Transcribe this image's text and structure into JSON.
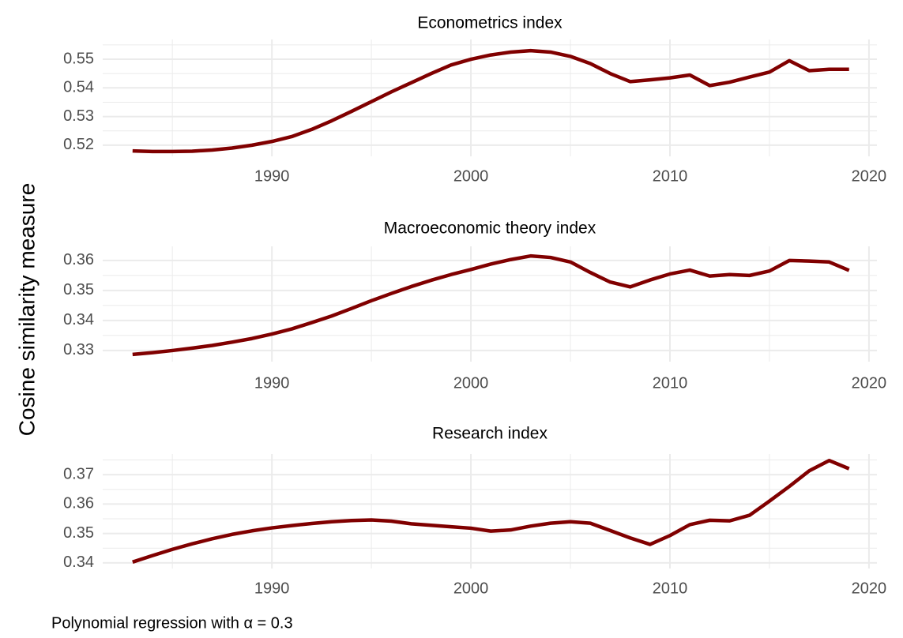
{
  "chart_data": [
    {
      "type": "line",
      "title": "Econometrics index",
      "x": [
        1983,
        1984,
        1985,
        1986,
        1987,
        1988,
        1989,
        1990,
        1991,
        1992,
        1993,
        1994,
        1995,
        1996,
        1997,
        1998,
        1999,
        2000,
        2001,
        2002,
        2003,
        2004,
        2005,
        2006,
        2007,
        2008,
        2009,
        2010,
        2011,
        2012,
        2013,
        2014,
        2015,
        2016,
        2017,
        2018,
        2019
      ],
      "series": [
        {
          "color": "#800000",
          "values": [
            0.518,
            0.5178,
            0.5178,
            0.5179,
            0.5183,
            0.519,
            0.52,
            0.5213,
            0.523,
            0.5255,
            0.5285,
            0.5318,
            0.5352,
            0.5386,
            0.5418,
            0.545,
            0.548,
            0.55,
            0.5515,
            0.5525,
            0.553,
            0.5525,
            0.551,
            0.5485,
            0.545,
            0.5422,
            0.5428,
            0.5435,
            0.5445,
            0.5408,
            0.542,
            0.5438,
            0.5455,
            0.5495,
            0.546,
            0.5465,
            0.5465
          ]
        }
      ],
      "xlim": [
        1981.5,
        2020.4
      ],
      "ylim": [
        0.5161,
        0.5569
      ],
      "xticks": [
        1990,
        2000,
        2010,
        2020
      ],
      "yticks": [
        0.52,
        0.53,
        0.54,
        0.55
      ],
      "grid": true
    },
    {
      "type": "line",
      "title": "Macroeconomic theory index",
      "x": [
        1983,
        1984,
        1985,
        1986,
        1987,
        1988,
        1989,
        1990,
        1991,
        1992,
        1993,
        1994,
        1995,
        1996,
        1997,
        1998,
        1999,
        2000,
        2001,
        2002,
        2003,
        2004,
        2005,
        2006,
        2007,
        2008,
        2009,
        2010,
        2011,
        2012,
        2013,
        2014,
        2015,
        2016,
        2017,
        2018,
        2019
      ],
      "series": [
        {
          "color": "#800000",
          "values": [
            0.3287,
            0.3293,
            0.33,
            0.3308,
            0.3317,
            0.3328,
            0.334,
            0.3355,
            0.3372,
            0.3393,
            0.3415,
            0.344,
            0.3466,
            0.349,
            0.3513,
            0.3534,
            0.3553,
            0.357,
            0.3588,
            0.3603,
            0.3615,
            0.361,
            0.3595,
            0.356,
            0.3528,
            0.3512,
            0.3535,
            0.3555,
            0.3568,
            0.3548,
            0.3553,
            0.355,
            0.3565,
            0.36,
            0.3598,
            0.3595,
            0.3567
          ]
        }
      ],
      "xlim": [
        1981.5,
        2020.4
      ],
      "ylim": [
        0.3263,
        0.3647
      ],
      "xticks": [
        1990,
        2000,
        2010,
        2020
      ],
      "yticks": [
        0.33,
        0.34,
        0.35,
        0.36
      ],
      "grid": true
    },
    {
      "type": "line",
      "title": "Research index",
      "x": [
        1983,
        1984,
        1985,
        1986,
        1987,
        1988,
        1989,
        1990,
        1991,
        1992,
        1993,
        1994,
        1995,
        1996,
        1997,
        1998,
        1999,
        2000,
        2001,
        2002,
        2003,
        2004,
        2005,
        2006,
        2007,
        2008,
        2009,
        2010,
        2011,
        2012,
        2013,
        2014,
        2015,
        2016,
        2017,
        2018,
        2019
      ],
      "series": [
        {
          "color": "#800000",
          "values": [
            0.3403,
            0.3425,
            0.3446,
            0.3465,
            0.3482,
            0.3497,
            0.3509,
            0.3519,
            0.3527,
            0.3534,
            0.354,
            0.3544,
            0.3546,
            0.3542,
            0.3533,
            0.3528,
            0.3523,
            0.3518,
            0.3508,
            0.3512,
            0.3525,
            0.3535,
            0.354,
            0.3535,
            0.351,
            0.3485,
            0.3463,
            0.3493,
            0.353,
            0.3545,
            0.3543,
            0.3562,
            0.361,
            0.366,
            0.3713,
            0.3748,
            0.372
          ]
        }
      ],
      "xlim": [
        1981.5,
        2020.4
      ],
      "ylim": [
        0.3381,
        0.377
      ],
      "xticks": [
        1990,
        2000,
        2010,
        2020
      ],
      "yticks": [
        0.34,
        0.35,
        0.36,
        0.37
      ],
      "grid": true
    }
  ],
  "ylabel": "Cosine similarity measure",
  "caption": "Polynomial regression with α = 0.3"
}
